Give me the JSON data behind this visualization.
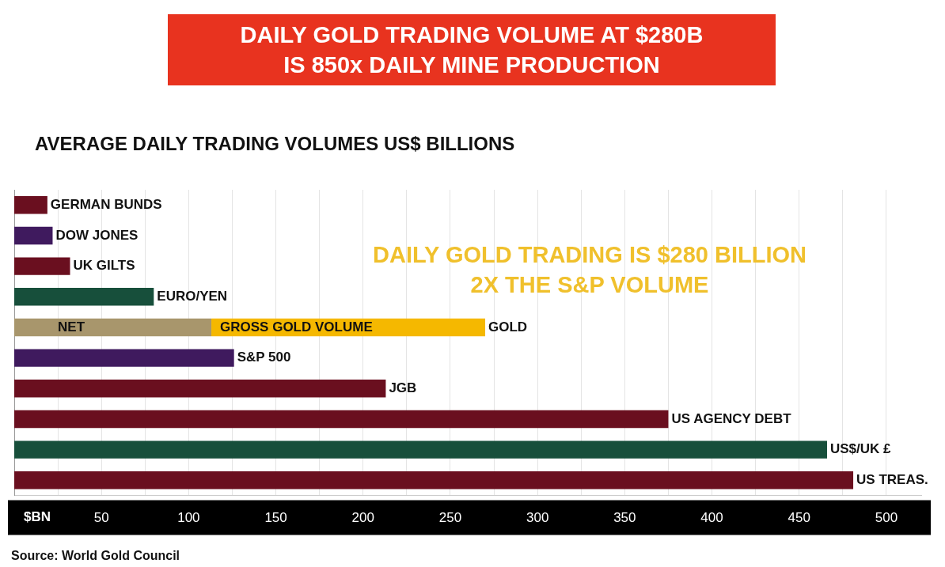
{
  "chart_data": {
    "type": "bar",
    "orientation": "horizontal",
    "stacked": true,
    "title": "DAILY GOLD TRADING VOLUME AT $280B\nIS 850x DAILY MINE PRODUCTION",
    "subtitle": "AVERAGE DAILY TRADING VOLUMES US$ BILLIONS",
    "xlabel": "$BN",
    "categories": [
      "GERMAN BUNDS",
      "DOW JONES",
      "UK GILTS",
      "EURO/YEN",
      "GOLD",
      "S&P 500",
      "JGB",
      "US AGENCY DEBT",
      "US$/UK £",
      "US TREAS."
    ],
    "series": [
      {
        "colors": [
          "#6a0f1f",
          "#3f1a5e",
          "#6a0f1f",
          "#174f3b",
          "#a8966c",
          "#3f1a5e",
          "#6a0f1f",
          "#6a0f1f",
          "#174f3b",
          "#6a0f1f"
        ],
        "values": [
          19,
          22,
          32,
          80,
          113,
          126,
          213,
          375,
          466,
          481
        ]
      },
      {
        "color": "#f5b800",
        "values": [
          null,
          null,
          null,
          null,
          157,
          null,
          null,
          null,
          null,
          null
        ]
      }
    ],
    "xlim": [
      0,
      520
    ],
    "xticks": [
      {
        "value": 25,
        "label": null
      },
      50,
      {
        "value": 75,
        "label": null
      },
      100,
      {
        "value": 125,
        "label": null
      },
      150,
      {
        "value": 175,
        "label": null
      },
      200,
      {
        "value": 225,
        "label": null
      },
      250,
      {
        "value": 275,
        "label": null
      },
      300,
      {
        "value": 325,
        "label": null
      },
      350,
      {
        "value": 375,
        "label": null
      },
      400,
      {
        "value": 425,
        "label": null
      },
      450,
      {
        "value": 475,
        "label": null
      },
      500
    ],
    "grid": "x",
    "legend": false,
    "annotations": [
      "DAILY GOLD TRADING IS $280 BILLION\n2X THE S&P VOLUME",
      {
        "text": "NET",
        "x": 25,
        "y": "GOLD"
      },
      {
        "text": "GROSS GOLD VOLUME",
        "x": 118,
        "y": "GOLD"
      },
      "Source: World Gold Council"
    ]
  }
}
